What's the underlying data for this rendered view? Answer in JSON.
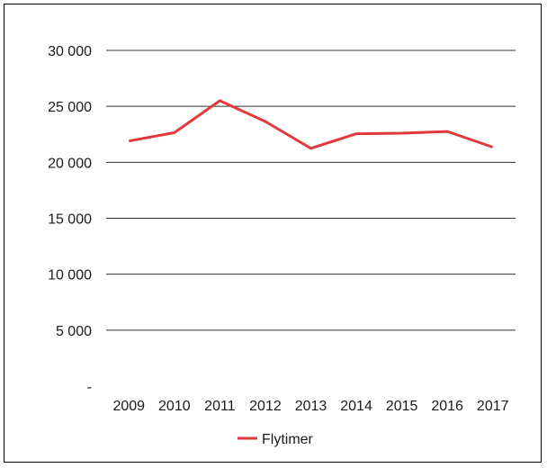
{
  "chart_data": {
    "type": "line",
    "categories": [
      "2009",
      "2010",
      "2011",
      "2012",
      "2013",
      "2014",
      "2015",
      "2016",
      "2017"
    ],
    "series": [
      {
        "name": "Flytimer",
        "values": [
          21900,
          22650,
          25500,
          23650,
          21250,
          22550,
          22600,
          22750,
          21350
        ]
      }
    ],
    "y_ticks": [
      "-",
      "5 000",
      "10 000",
      "15 000",
      "20 000",
      "25 000",
      "30 000"
    ],
    "ylim": [
      0,
      30000
    ],
    "y_step": 5000,
    "grid": "horizontal",
    "legend_position": "bottom",
    "colors": {
      "series": "#e03a3e",
      "grid": "#333333"
    }
  }
}
